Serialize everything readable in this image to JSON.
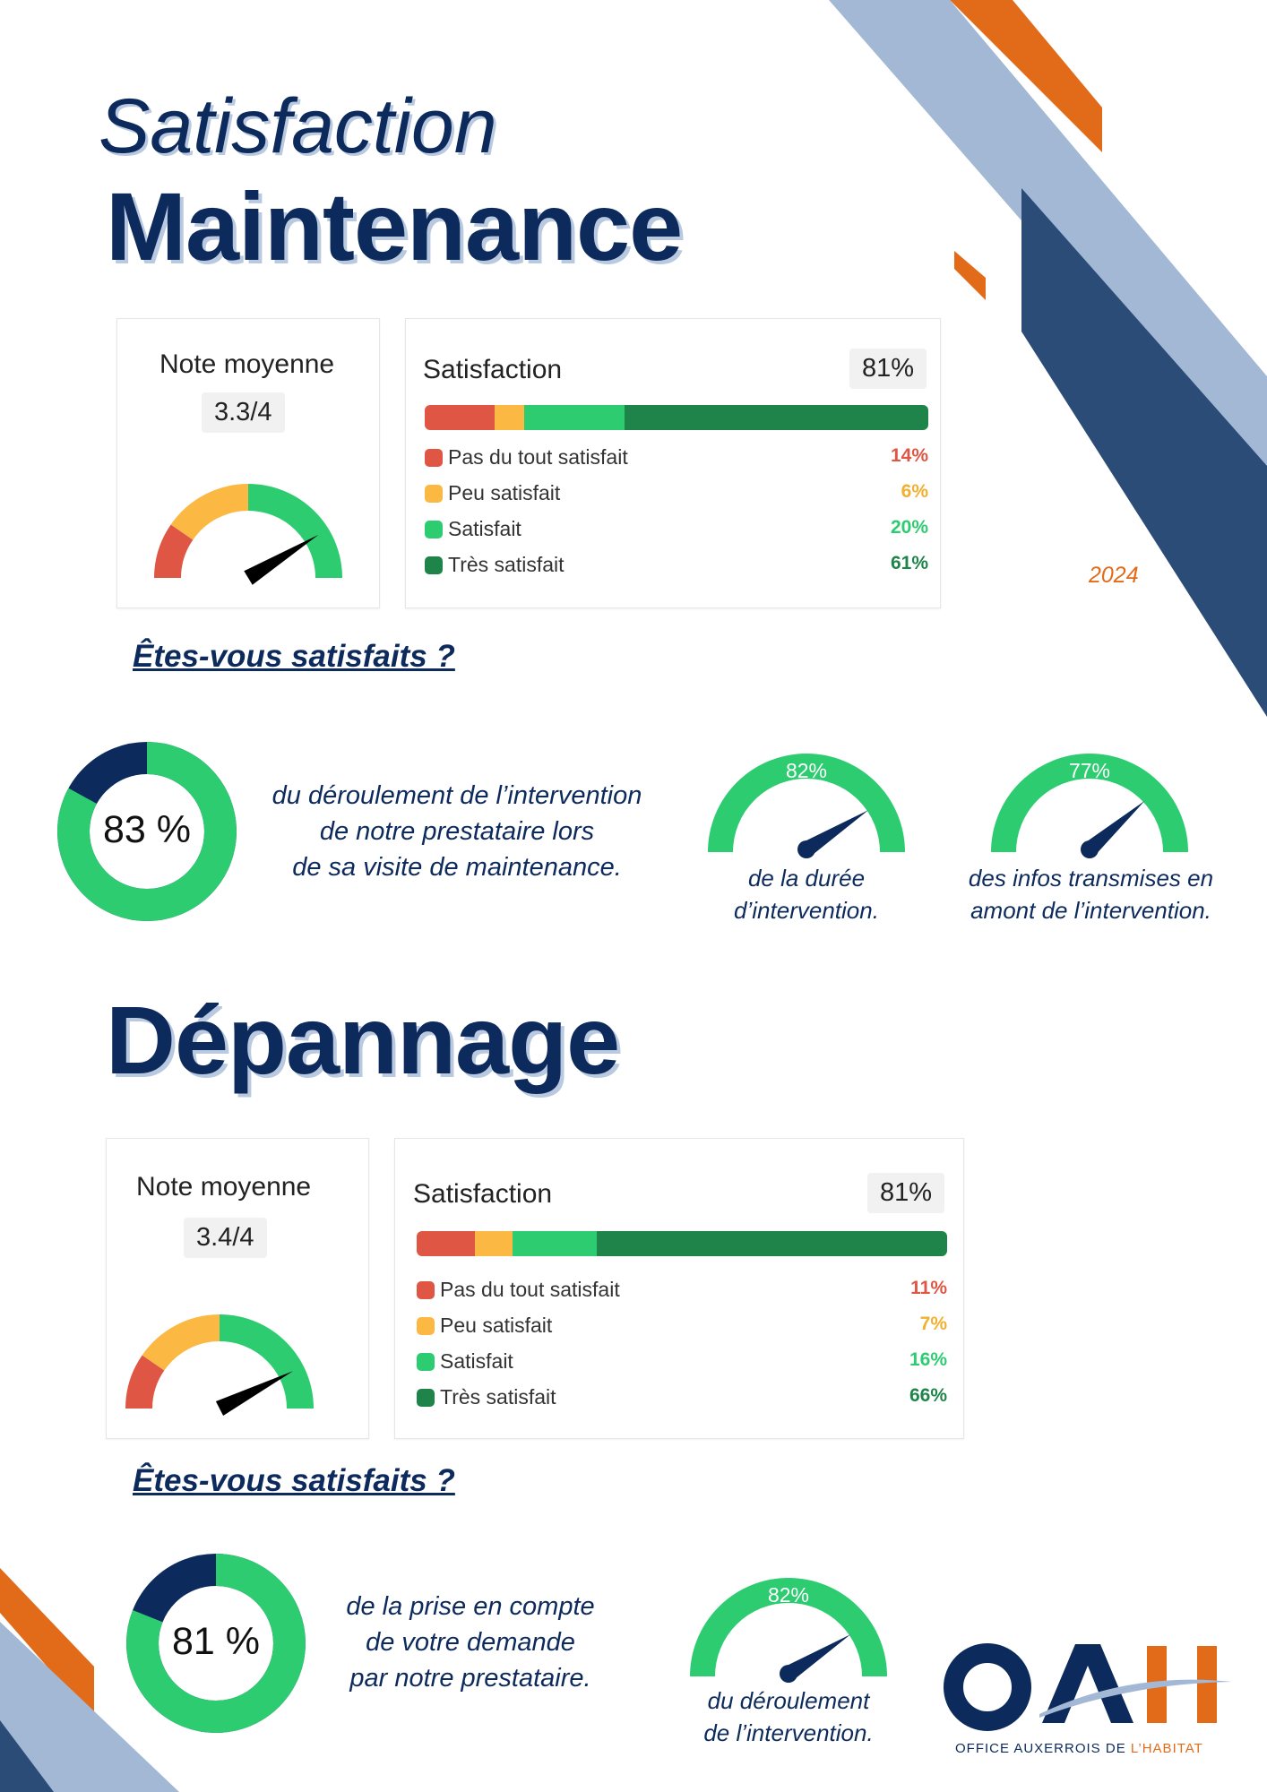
{
  "header": {
    "title_line1": "Satisfaction",
    "title_line2": "Maintenance",
    "year": "2024"
  },
  "colors": {
    "navy": "#0d2a5c",
    "orange": "#e26b1a",
    "light_blue": "#a3b8d4",
    "red": "#e05645",
    "yellow": "#fbb843",
    "green": "#2ecc71",
    "dark_green": "#1e8449"
  },
  "maintenance": {
    "note_title": "Note moyenne",
    "note_value": "3.3/4",
    "note_fraction": 0.825,
    "satisfaction_title": "Satisfaction",
    "satisfaction_value": "81%",
    "breakdown": [
      {
        "label": "Pas du tout satisfait",
        "pct": "14%",
        "value": 14,
        "color": "#e05645"
      },
      {
        "label": "Peu satisfait",
        "pct": "6%",
        "value": 6,
        "color": "#fbb843"
      },
      {
        "label": "Satisfait",
        "pct": "20%",
        "value": 20,
        "color": "#2ecc71"
      },
      {
        "label": "Très satisfait",
        "pct": "61%",
        "value": 61,
        "color": "#1e8449"
      }
    ],
    "question": "Êtes-vous satisfaits ?",
    "donut": {
      "value": "83 %",
      "fraction": 0.83
    },
    "donut_desc": [
      "du déroulement de l’intervention",
      "de notre prestataire lors",
      "de sa visite de maintenance."
    ],
    "gauges": [
      {
        "value": "82%",
        "fraction": 0.82,
        "desc": [
          "de la durée",
          "d’intervention."
        ]
      },
      {
        "value": "77%",
        "fraction": 0.77,
        "desc": [
          "des infos transmises en",
          "amont de l’intervention."
        ]
      }
    ]
  },
  "depannage": {
    "title": "Dépannage",
    "note_title": "Note moyenne",
    "note_value": "3.4/4",
    "note_fraction": 0.85,
    "satisfaction_title": "Satisfaction",
    "satisfaction_value": "81%",
    "breakdown": [
      {
        "label": "Pas du tout satisfait",
        "pct": "11%",
        "value": 11,
        "color": "#e05645"
      },
      {
        "label": "Peu satisfait",
        "pct": "7%",
        "value": 7,
        "color": "#fbb843"
      },
      {
        "label": "Satisfait",
        "pct": "16%",
        "value": 16,
        "color": "#2ecc71"
      },
      {
        "label": "Très satisfait",
        "pct": "66%",
        "value": 66,
        "color": "#1e8449"
      }
    ],
    "question": "Êtes-vous satisfaits ?",
    "donut": {
      "value": "81 %",
      "fraction": 0.81
    },
    "donut_desc": [
      "de la prise en compte",
      "de votre demande",
      "par notre prestataire."
    ],
    "gauges": [
      {
        "value": "82%",
        "fraction": 0.82,
        "desc": [
          "du déroulement",
          "de l’intervention."
        ]
      }
    ]
  },
  "logo": {
    "letters": "OAH",
    "subtitle_main": "OFFICE AUXERROIS DE ",
    "subtitle_accent": "L’HABITAT"
  }
}
